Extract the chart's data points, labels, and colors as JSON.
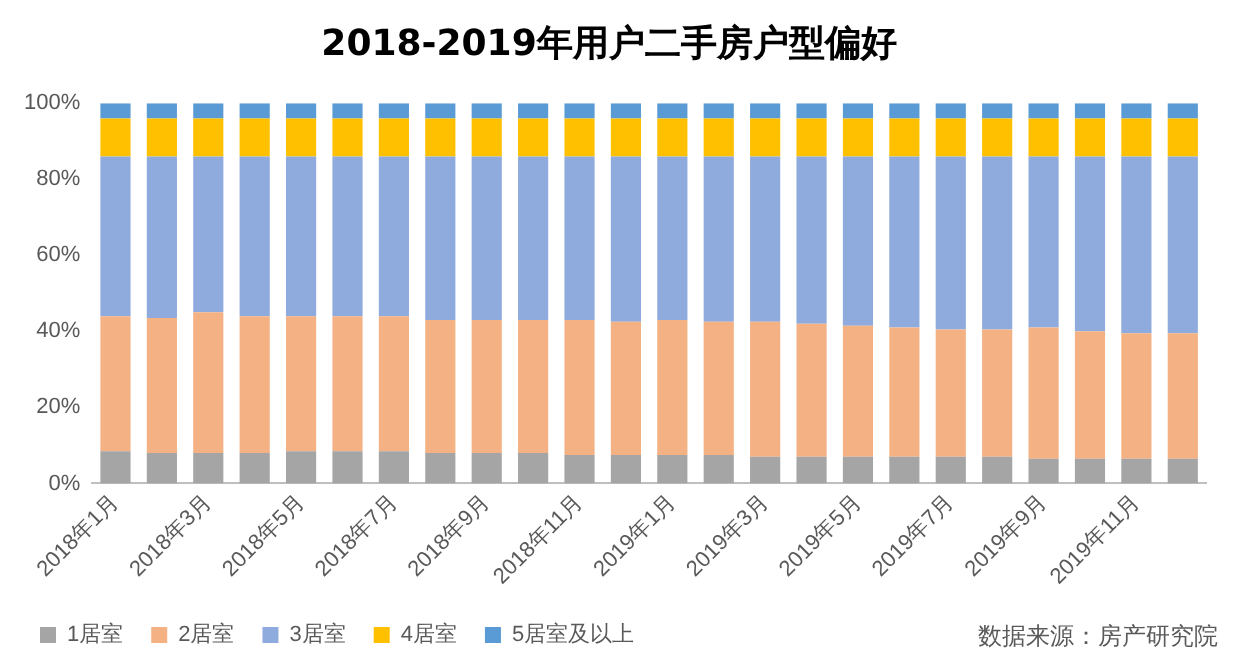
{
  "chart_data": {
    "type": "bar",
    "stacked": true,
    "title": "2018-2019年用户二手房户型偏好",
    "categories": [
      "2018年1月",
      null,
      "2018年3月",
      null,
      "2018年5月",
      null,
      "2018年7月",
      null,
      "2018年9月",
      null,
      "2018年11月",
      null,
      "2019年1月",
      null,
      "2019年3月",
      null,
      "2019年5月",
      null,
      "2019年7月",
      null,
      "2019年9月",
      null,
      "2019年11月",
      null
    ],
    "series": [
      {
        "name": "1居室",
        "color": "#a5a5a5",
        "values": [
          8.5,
          8,
          8,
          8,
          8.5,
          8.5,
          8.5,
          8,
          8,
          8,
          7.5,
          7.5,
          7.5,
          7.5,
          7,
          7,
          7,
          7,
          7,
          7,
          6.5,
          6.5,
          6.5,
          6.5
        ]
      },
      {
        "name": "2居室",
        "color": "#f4b183",
        "values": [
          35.5,
          35.5,
          37,
          36,
          35.5,
          35.5,
          35.5,
          35,
          35,
          35,
          35.5,
          35,
          35.5,
          35,
          35.5,
          35,
          34.5,
          34,
          33.5,
          33.5,
          34.5,
          33.5,
          33,
          33
        ]
      },
      {
        "name": "3居室",
        "color": "#8faadc",
        "values": [
          42,
          42.5,
          41,
          42,
          42,
          42,
          42,
          43,
          43,
          43,
          43,
          43.5,
          43,
          43.5,
          43.5,
          44,
          44.5,
          45,
          45.5,
          45.5,
          45,
          46,
          46.5,
          46.5
        ]
      },
      {
        "name": "4居室",
        "color": "#ffc000",
        "values": [
          10,
          10,
          10,
          10,
          10,
          10,
          10,
          10,
          10,
          10,
          10,
          10,
          10,
          10,
          10,
          10,
          10,
          10,
          10,
          10,
          10,
          10,
          10,
          10
        ]
      },
      {
        "name": "5居室及以上",
        "color": "#5b9bd5",
        "values": [
          4,
          4,
          4,
          4,
          4,
          4,
          4,
          4,
          4,
          4,
          4,
          4,
          4,
          4,
          4,
          4,
          4,
          4,
          4,
          4,
          4,
          4,
          4,
          4
        ]
      }
    ],
    "ylim": [
      0,
      100
    ],
    "yticks": [
      {
        "value": 0,
        "label": "0%"
      },
      {
        "value": 20,
        "label": "20%"
      },
      {
        "value": 40,
        "label": "40%"
      },
      {
        "value": 60,
        "label": "60%"
      },
      {
        "value": 80,
        "label": "80%"
      },
      {
        "value": 100,
        "label": "100%"
      }
    ],
    "grid": false,
    "legend": "bottom",
    "annotations": [
      "数据来源：房产研究院"
    ]
  }
}
